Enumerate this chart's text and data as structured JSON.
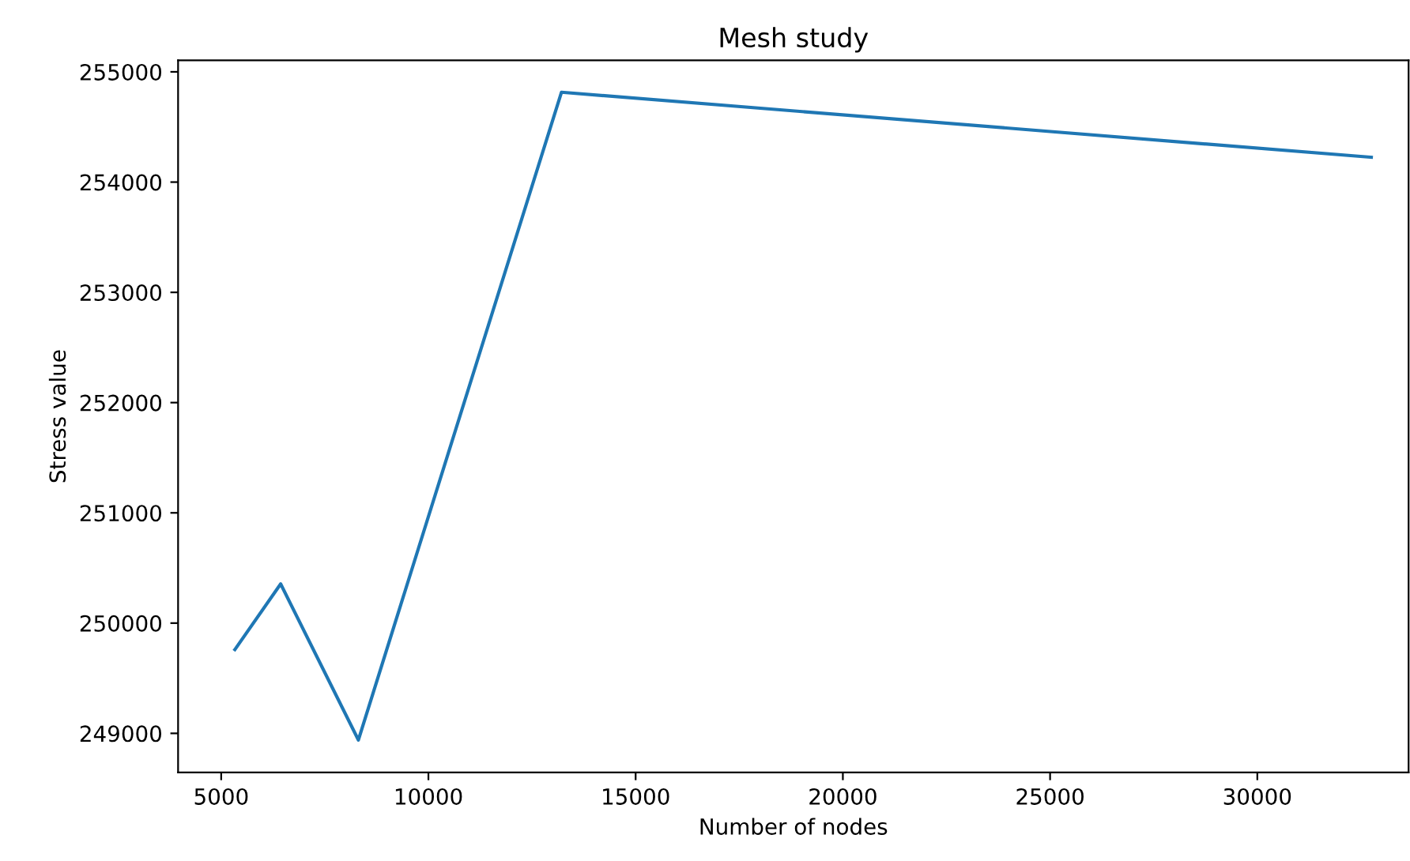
{
  "chart_data": {
    "type": "line",
    "title": "Mesh study",
    "xlabel": "Number of nodes",
    "ylabel": "Stress value",
    "x": [
      5330,
      6435,
      8310,
      13210,
      32750
    ],
    "series": [
      {
        "color": "#1f77b4",
        "values": [
          249760,
          250355,
          248940,
          254815,
          254225
        ]
      }
    ],
    "xlim": [
      3960,
      33650
    ],
    "ylim": [
      248645,
      255105
    ],
    "xticks": [
      5000,
      10000,
      15000,
      20000,
      25000,
      30000
    ],
    "yticks": [
      249000,
      250000,
      251000,
      252000,
      253000,
      254000,
      255000
    ],
    "grid": false,
    "legend": false,
    "marker": "none",
    "line_style": "solid"
  }
}
